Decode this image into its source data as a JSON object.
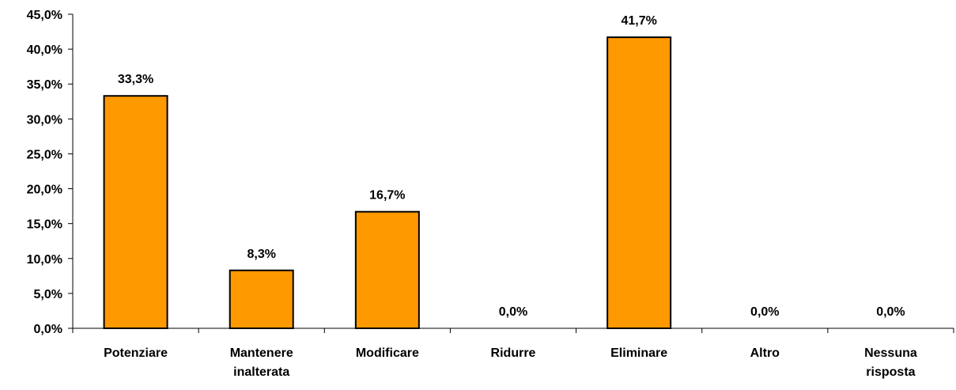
{
  "chart_data": {
    "type": "bar",
    "categories": [
      [
        "Potenziare"
      ],
      [
        "Mantenere",
        "inalterata"
      ],
      [
        "Modificare"
      ],
      [
        "Ridurre"
      ],
      [
        "Eliminare"
      ],
      [
        "Altro"
      ],
      [
        "Nessuna",
        "risposta"
      ]
    ],
    "values": [
      33.3,
      8.3,
      16.7,
      0.0,
      41.7,
      0.0,
      0.0
    ],
    "value_labels": [
      "33,3%",
      "8,3%",
      "16,7%",
      "0,0%",
      "41,7%",
      "0,0%",
      "0,0%"
    ],
    "yticks": [
      0,
      5,
      10,
      15,
      20,
      25,
      30,
      35,
      40,
      45
    ],
    "ytick_labels": [
      "0,0%",
      "5,0%",
      "10,0%",
      "15,0%",
      "20,0%",
      "25,0%",
      "30,0%",
      "35,0%",
      "40,0%",
      "45,0%"
    ],
    "ylim": [
      0,
      45
    ],
    "title": "",
    "xlabel": "",
    "ylabel": "",
    "grid": false,
    "legend": "none",
    "colors": {
      "bar_fill": "#FF9900",
      "bar_stroke": "#000000",
      "axis": "#000000"
    }
  }
}
